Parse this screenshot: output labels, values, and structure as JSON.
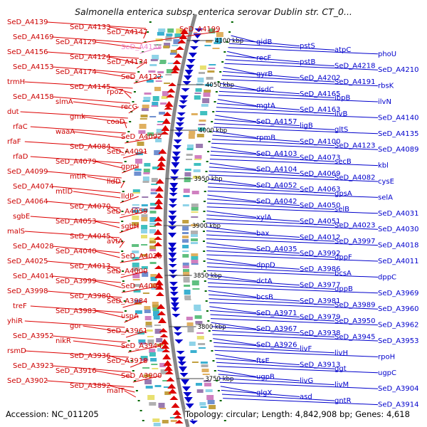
{
  "title": "Salmonella enterica subsp. enterica serovar Dublin str. CT_0...",
  "footer": {
    "accession": "Accession: NC_011205",
    "topology": "Topology: circular; Length: 4,842,908 bp; Genes: 4,618"
  },
  "colors": {
    "forward": "#dd0000",
    "reverse": "#0000cc",
    "backbone": "#888888",
    "tick": "#006600",
    "highlight": "#ee88cc"
  },
  "kbp_labels": [
    "4100 kbp",
    "4050 kbp",
    "4000 kbp",
    "3950 kbp",
    "3900 kbp",
    "3850 kbp",
    "3800 kbp",
    "3750 kbp"
  ],
  "left_genes": [
    "SeD_A4139",
    "SeD_A4133",
    "SeD_A4147",
    "SeD_A4169",
    "SeD_A4129",
    "SeD_A4138",
    "SeD_A4156",
    "SeD_A4124",
    "SeD_A4134",
    "SeD_A4153",
    "SeD_A4174",
    "SeD_A4122",
    "trmH",
    "SeD_A4145",
    "rpoZ",
    "SeD_A4158",
    "slmA",
    "recG",
    "dut",
    "gmk",
    "coaD",
    "rfaC",
    "waaA",
    "SeD_A4092",
    "rfaF",
    "SeD_A4084",
    "SeD_A4091",
    "rfaD",
    "SeD_A4079",
    "gpmI",
    "SeD_A4099",
    "mtlR",
    "lldD",
    "SeD_A4074",
    "mtlD",
    "lldP",
    "SeD_A4064",
    "SeD_A4070",
    "SeD_A4059",
    "sgbE",
    "SeD_A4053",
    "sgbH",
    "malS",
    "SeD_A4045",
    "avtA",
    "SeD_A4028",
    "SeD_A4040",
    "SeD_A4026",
    "SeD_A4025",
    "SeD_A4013",
    "SeD_A4000",
    "SeD_A4014",
    "SeD_A3999",
    "SeD_A4005",
    "SeD_A3998",
    "SeD_A3980",
    "SeD_A3984",
    "treF",
    "SeD_A3983",
    "uspA",
    "yhiR",
    "gor",
    "SeD_A3961",
    "SeD_A3952",
    "nikR",
    "SeD_A3944",
    "rsmD",
    "SeD_A3936",
    "SeD_A3918",
    "SeD_A3923",
    "SeD_A3916",
    "SeD_A3900",
    "SeD_A3902",
    "SeD_A3892",
    "malT"
  ],
  "highlight_gene": "SeD_A4138",
  "top_gene": "SeD_A4199",
  "right_genes": [
    "gidB",
    "pstS",
    "atpC",
    "phoU",
    "recF",
    "pstB",
    "SeD_A4218",
    "SeD_A4210",
    "gyrB",
    "SeD_A4202",
    "SeD_A4191",
    "rbsK",
    "dsdC",
    "SeD_A4165",
    "ibpB",
    "ilvN",
    "mgtA",
    "SeD_A4163",
    "ilvB",
    "SeD_A4140",
    "SeD_A4157",
    "ligB",
    "gltS",
    "SeD_A4135",
    "rpmB",
    "SeD_A4100",
    "SeD_A4123",
    "SeD_A4089",
    "SeD_A4103",
    "SeD_A4073",
    "secB",
    "kbl",
    "SeD_A4104",
    "SeD_A4069",
    "SeD_A4082",
    "cysE",
    "SeD_A4052",
    "SeD_A4063",
    "gpsA",
    "selA",
    "SeD_A4042",
    "SeD_A4050",
    "selB",
    "SeD_A4031",
    "xylA",
    "SeD_A4051",
    "SeD_A4023",
    "SeD_A4030",
    "bax",
    "SeD_A4012",
    "SeD_A3997",
    "SeD_A4018",
    "SeD_A4035",
    "SeD_A3992",
    "dppF",
    "SeD_A4011",
    "dppD",
    "SeD_A3986",
    "bcsA",
    "dppC",
    "dctA",
    "SeD_A3977",
    "dppB",
    "SeD_A3969",
    "bcsB",
    "SeD_A3981",
    "SeD_A3989",
    "SeD_A3960",
    "SeD_A3971",
    "SeD_A3979",
    "SeD_A3950",
    "SeD_A3962",
    "SeD_A3967",
    "SeD_A3938",
    "SeD_A3945",
    "SeD_A3953",
    "SeD_A3926",
    "livF",
    "livH",
    "rpoH",
    "ftsE",
    "SeD_A3913",
    "ggt",
    "ugpC",
    "ugpB",
    "livG",
    "livM",
    "SeD_A3904",
    "glgX",
    "asd",
    "gntR",
    "SeD_A3914"
  ]
}
